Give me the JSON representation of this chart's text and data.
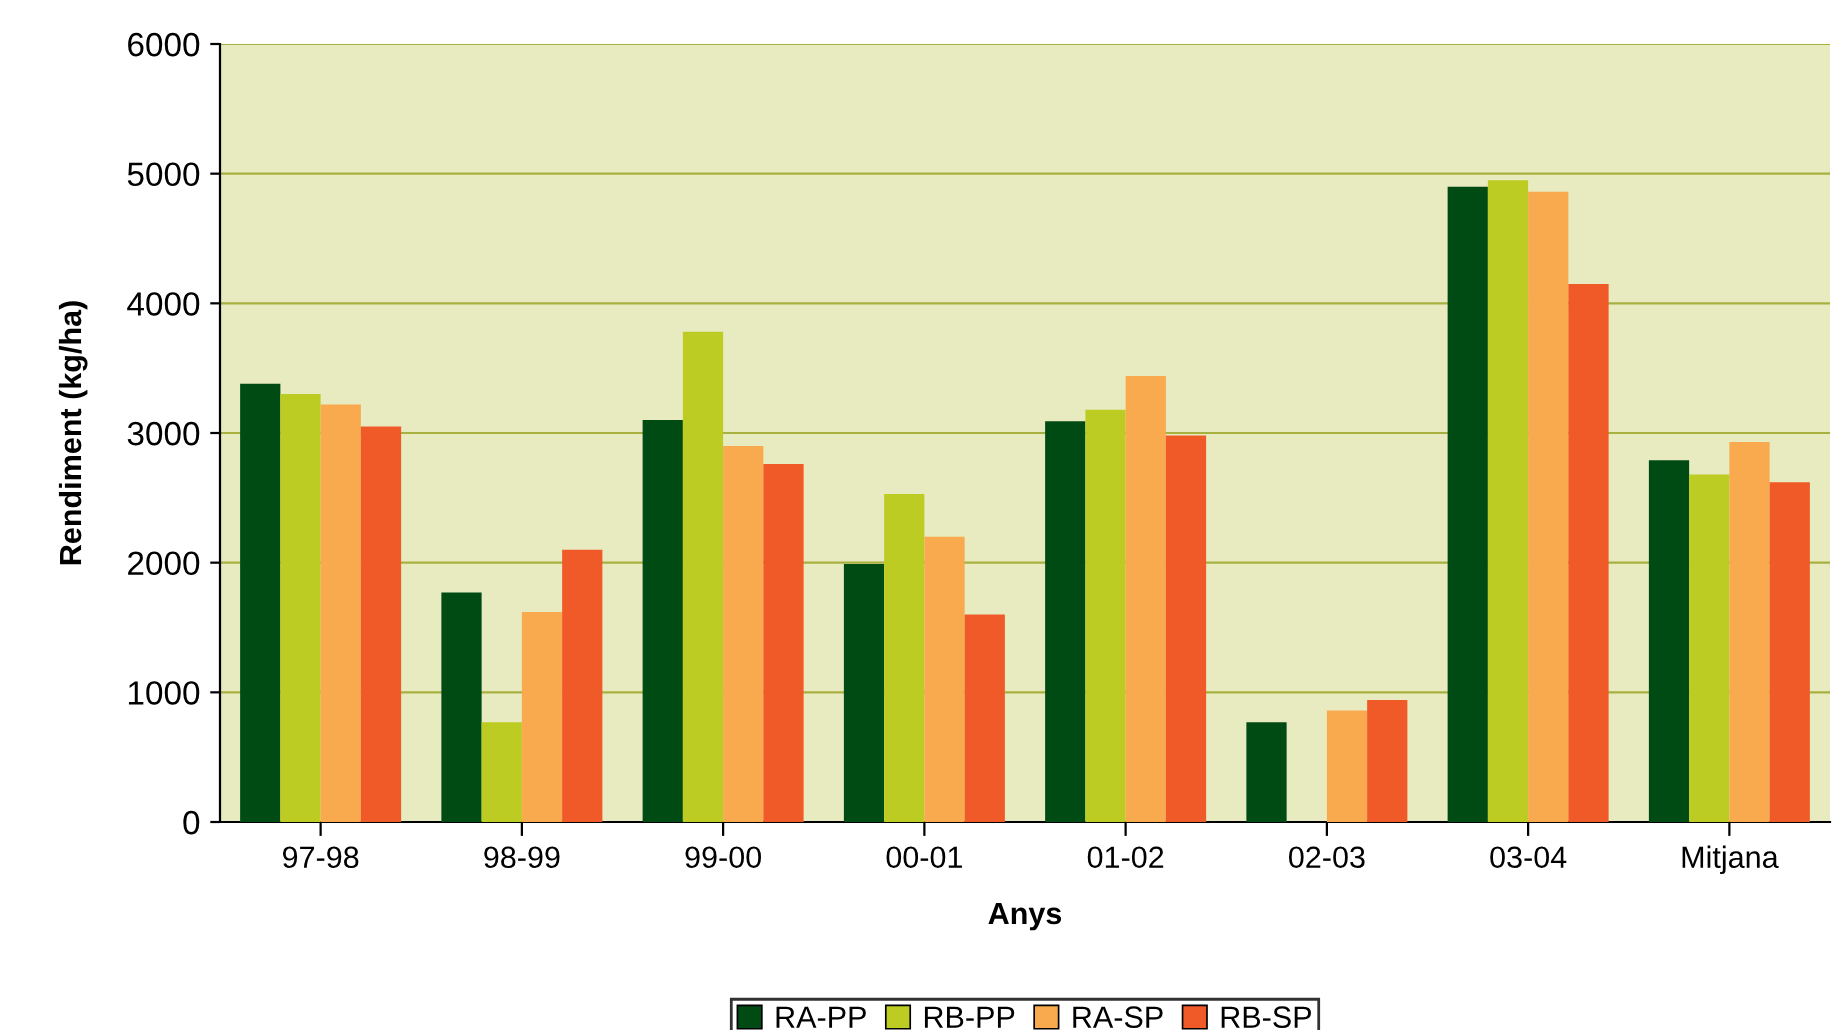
{
  "chart_data": {
    "type": "bar",
    "xlabel": "Anys",
    "ylabel": "Rendiment (kg/ha)",
    "categories": [
      "97-98",
      "98-99",
      "99-00",
      "00-01",
      "01-02",
      "02-03",
      "03-04",
      "Mitjana"
    ],
    "series": [
      {
        "name": "RA-PP",
        "color": "#004a14",
        "values": [
          3380,
          1770,
          3100,
          1990,
          3090,
          770,
          4900,
          2790
        ]
      },
      {
        "name": "RB-PP",
        "color": "#bccc22",
        "values": [
          3300,
          770,
          3780,
          2530,
          3180,
          null,
          4950,
          2680
        ]
      },
      {
        "name": "RA-SP",
        "color": "#f9a94e",
        "values": [
          3220,
          1620,
          2900,
          2200,
          3440,
          860,
          4860,
          2930
        ]
      },
      {
        "name": "RB-SP",
        "color": "#f05a28",
        "values": [
          3050,
          2100,
          2760,
          1600,
          2980,
          940,
          4150,
          2620
        ]
      }
    ],
    "ylim": [
      0,
      6000
    ],
    "yticks": [
      0,
      1000,
      2000,
      3000,
      4000,
      5000,
      6000
    ],
    "grid": "y",
    "legend": "bottom"
  }
}
